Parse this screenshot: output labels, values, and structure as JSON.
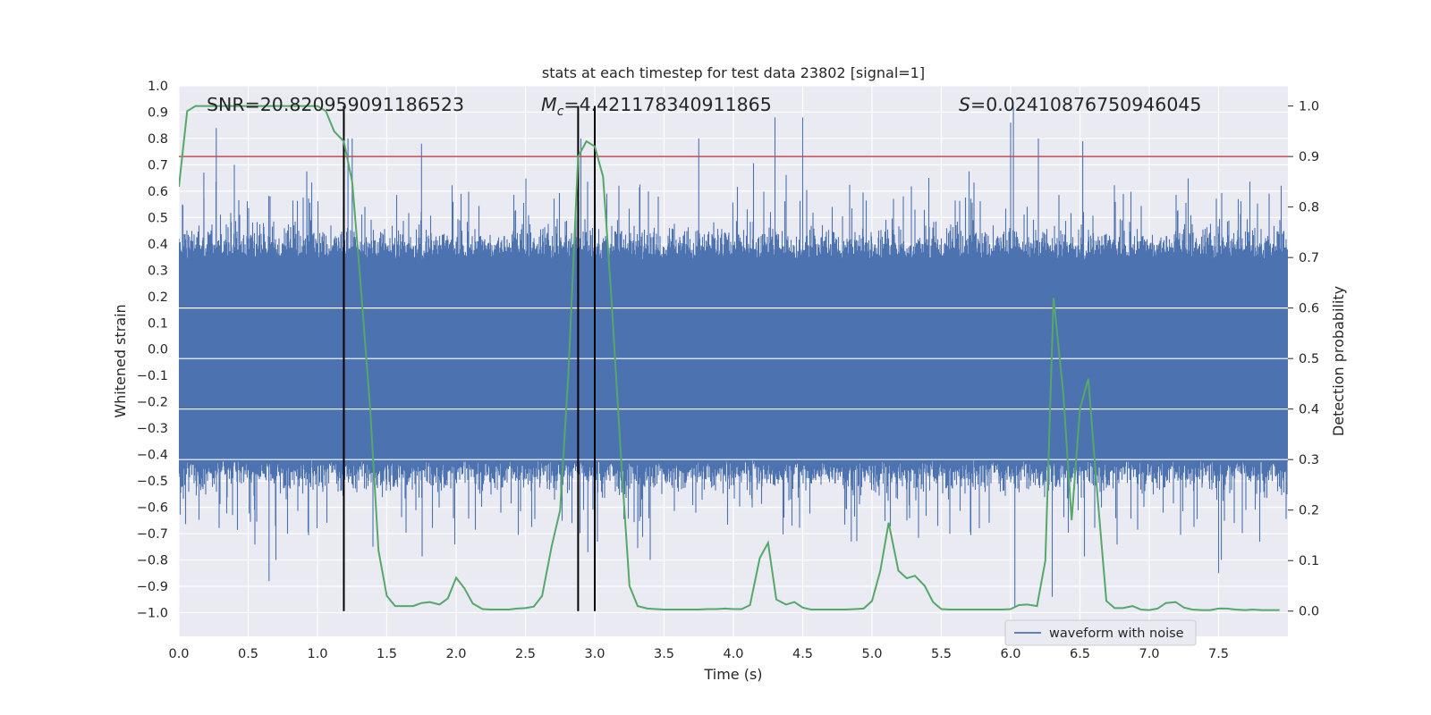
{
  "chart_data": {
    "type": "line",
    "title": "stats at each timestep for test data 23802 [signal=1]",
    "xlabel": "Time (s)",
    "ylabel_left": "Whitened strain",
    "ylabel_right": "Detection probability",
    "xlim": [
      0.0,
      8.0
    ],
    "ylim_left": [
      -1.09,
      1.0
    ],
    "ylim_right": [
      -0.05,
      1.04
    ],
    "x_ticks": [
      0.0,
      0.5,
      1.0,
      1.5,
      2.0,
      2.5,
      3.0,
      3.5,
      4.0,
      4.5,
      5.0,
      5.5,
      6.0,
      6.5,
      7.0,
      7.5
    ],
    "x_tick_labels": [
      "0.0",
      "0.5",
      "1.0",
      "1.5",
      "2.0",
      "2.5",
      "3.0",
      "3.5",
      "4.0",
      "4.5",
      "5.0",
      "5.5",
      "6.0",
      "6.5",
      "7.0",
      "7.5"
    ],
    "y_left_ticks": [
      1.0,
      0.9,
      0.8,
      0.7,
      0.6,
      0.5,
      0.4,
      0.3,
      0.2,
      0.1,
      0.0,
      -0.1,
      -0.2,
      -0.3,
      -0.4,
      -0.5,
      -0.6,
      -0.7,
      -0.8,
      -0.9,
      -1.0
    ],
    "y_left_tick_labels": [
      "1.0",
      "0.9",
      "0.8",
      "0.7",
      "0.6",
      "0.5",
      "0.4",
      "0.3",
      "0.2",
      "0.1",
      "0.0",
      "−0.1",
      "−0.2",
      "−0.3",
      "−0.4",
      "−0.5",
      "−0.6",
      "−0.7",
      "−0.8",
      "−0.9",
      "−1.0"
    ],
    "y_right_ticks": [
      1.0,
      0.9,
      0.8,
      0.7,
      0.6,
      0.5,
      0.4,
      0.3,
      0.2,
      0.1,
      0.0
    ],
    "y_right_tick_labels": [
      "1.0",
      "0.9",
      "0.8",
      "0.7",
      "0.6",
      "0.5",
      "0.4",
      "0.3",
      "0.2",
      "0.1",
      "0.0"
    ],
    "annotations": {
      "snr": "SNR=20.820959091186523",
      "mc_prefix": "M",
      "mc_sub": "c",
      "mc_value": "=4.421178340911865",
      "s_prefix": "S",
      "s_value": "=0.024108767509460 45"
    },
    "legend": {
      "label": "waveform with noise",
      "placement": "lower-right"
    },
    "grid": true,
    "colors": {
      "background": "#eaeaf2",
      "grid": "#ffffff",
      "waveform": "#4c72b0",
      "probability": "#55a868",
      "threshold": "#c44e52",
      "marker": "#000000"
    },
    "waveform": {
      "name": "waveform with noise",
      "envelope_core": [
        -0.42,
        0.34
      ],
      "typical_peak_abs": 0.5,
      "spikes": [
        {
          "x": 0.27,
          "y": 0.84
        },
        {
          "x": 0.18,
          "y": 0.67
        },
        {
          "x": 0.4,
          "y": 0.7
        },
        {
          "x": 0.65,
          "y": -0.88
        },
        {
          "x": 0.7,
          "y": -0.8
        },
        {
          "x": 1.22,
          "y": 0.8
        },
        {
          "x": 1.25,
          "y": 0.8
        },
        {
          "x": 1.4,
          "y": -0.75
        },
        {
          "x": 1.75,
          "y": 0.78
        },
        {
          "x": 2.9,
          "y": 0.8
        },
        {
          "x": 2.95,
          "y": -0.77
        },
        {
          "x": 3.4,
          "y": -0.8
        },
        {
          "x": 3.75,
          "y": 0.8
        },
        {
          "x": 4.3,
          "y": 0.88
        },
        {
          "x": 4.5,
          "y": 0.88
        },
        {
          "x": 6.0,
          "y": 0.86
        },
        {
          "x": 6.02,
          "y": 0.92
        },
        {
          "x": 6.03,
          "y": -0.98
        },
        {
          "x": 6.3,
          "y": -0.94
        },
        {
          "x": 6.52,
          "y": 0.79
        },
        {
          "x": 7.5,
          "y": -0.85
        },
        {
          "x": 7.52,
          "y": -0.8
        },
        {
          "x": 6.2,
          "y": 0.8
        },
        {
          "x": 4.85,
          "y": -0.73
        }
      ]
    },
    "series": [
      {
        "name": "",
        "axis": "right",
        "x": [
          0.0,
          0.06,
          0.12,
          0.19,
          0.25,
          0.31,
          0.38,
          0.44,
          0.5,
          0.56,
          0.62,
          0.69,
          0.75,
          0.81,
          0.88,
          0.94,
          1.0,
          1.06,
          1.12,
          1.19,
          1.25,
          1.31,
          1.38,
          1.44,
          1.5,
          1.56,
          1.62,
          1.69,
          1.75,
          1.81,
          1.88,
          1.94,
          2.0,
          2.06,
          2.12,
          2.19,
          2.25,
          2.31,
          2.38,
          2.44,
          2.5,
          2.56,
          2.62,
          2.69,
          2.75,
          2.81,
          2.88,
          2.94,
          3.0,
          3.06,
          3.12,
          3.19,
          3.25,
          3.31,
          3.38,
          3.44,
          3.5,
          3.56,
          3.62,
          3.69,
          3.75,
          3.81,
          3.88,
          3.94,
          4.0,
          4.06,
          4.12,
          4.19,
          4.25,
          4.31,
          4.38,
          4.44,
          4.5,
          4.56,
          4.62,
          4.69,
          4.75,
          4.81,
          4.88,
          4.94,
          5.0,
          5.06,
          5.12,
          5.19,
          5.25,
          5.31,
          5.38,
          5.44,
          5.5,
          5.56,
          5.62,
          5.69,
          5.75,
          5.81,
          5.88,
          5.94,
          6.0,
          6.06,
          6.12,
          6.19,
          6.25,
          6.31,
          6.38,
          6.44,
          6.5,
          6.56,
          6.62,
          6.69,
          6.75,
          6.81,
          6.88,
          6.94,
          7.0,
          7.06,
          7.12,
          7.19,
          7.25,
          7.31,
          7.38,
          7.44,
          7.5,
          7.56,
          7.62,
          7.69,
          7.75,
          7.81,
          7.88,
          7.94
        ],
        "values": [
          0.84,
          0.99,
          1.0,
          1.0,
          1.0,
          1.0,
          1.0,
          1.0,
          1.0,
          1.0,
          1.0,
          1.0,
          1.0,
          1.0,
          1.0,
          1.0,
          1.0,
          0.99,
          0.95,
          0.93,
          0.85,
          0.65,
          0.4,
          0.12,
          0.03,
          0.01,
          0.01,
          0.01,
          0.016,
          0.018,
          0.013,
          0.025,
          0.066,
          0.045,
          0.015,
          0.004,
          0.003,
          0.003,
          0.003,
          0.005,
          0.006,
          0.009,
          0.03,
          0.13,
          0.2,
          0.47,
          0.9,
          0.93,
          0.92,
          0.86,
          0.62,
          0.3,
          0.05,
          0.01,
          0.005,
          0.004,
          0.003,
          0.003,
          0.003,
          0.003,
          0.003,
          0.004,
          0.004,
          0.005,
          0.004,
          0.004,
          0.012,
          0.105,
          0.135,
          0.023,
          0.013,
          0.018,
          0.007,
          0.003,
          0.003,
          0.003,
          0.003,
          0.003,
          0.004,
          0.005,
          0.02,
          0.08,
          0.175,
          0.08,
          0.065,
          0.07,
          0.05,
          0.018,
          0.004,
          0.003,
          0.003,
          0.003,
          0.003,
          0.003,
          0.003,
          0.003,
          0.004,
          0.012,
          0.013,
          0.01,
          0.1,
          0.62,
          0.43,
          0.18,
          0.4,
          0.46,
          0.25,
          0.02,
          0.006,
          0.006,
          0.01,
          0.003,
          0.002,
          0.005,
          0.016,
          0.018,
          0.007,
          0.003,
          0.002,
          0.002,
          0.005,
          0.005,
          0.003,
          0.002,
          0.003,
          0.002,
          0.002,
          0.002
        ]
      }
    ],
    "threshold": {
      "axis": "right",
      "value": 0.9
    },
    "markers_x": [
      1.19,
      2.88,
      3.0
    ]
  }
}
